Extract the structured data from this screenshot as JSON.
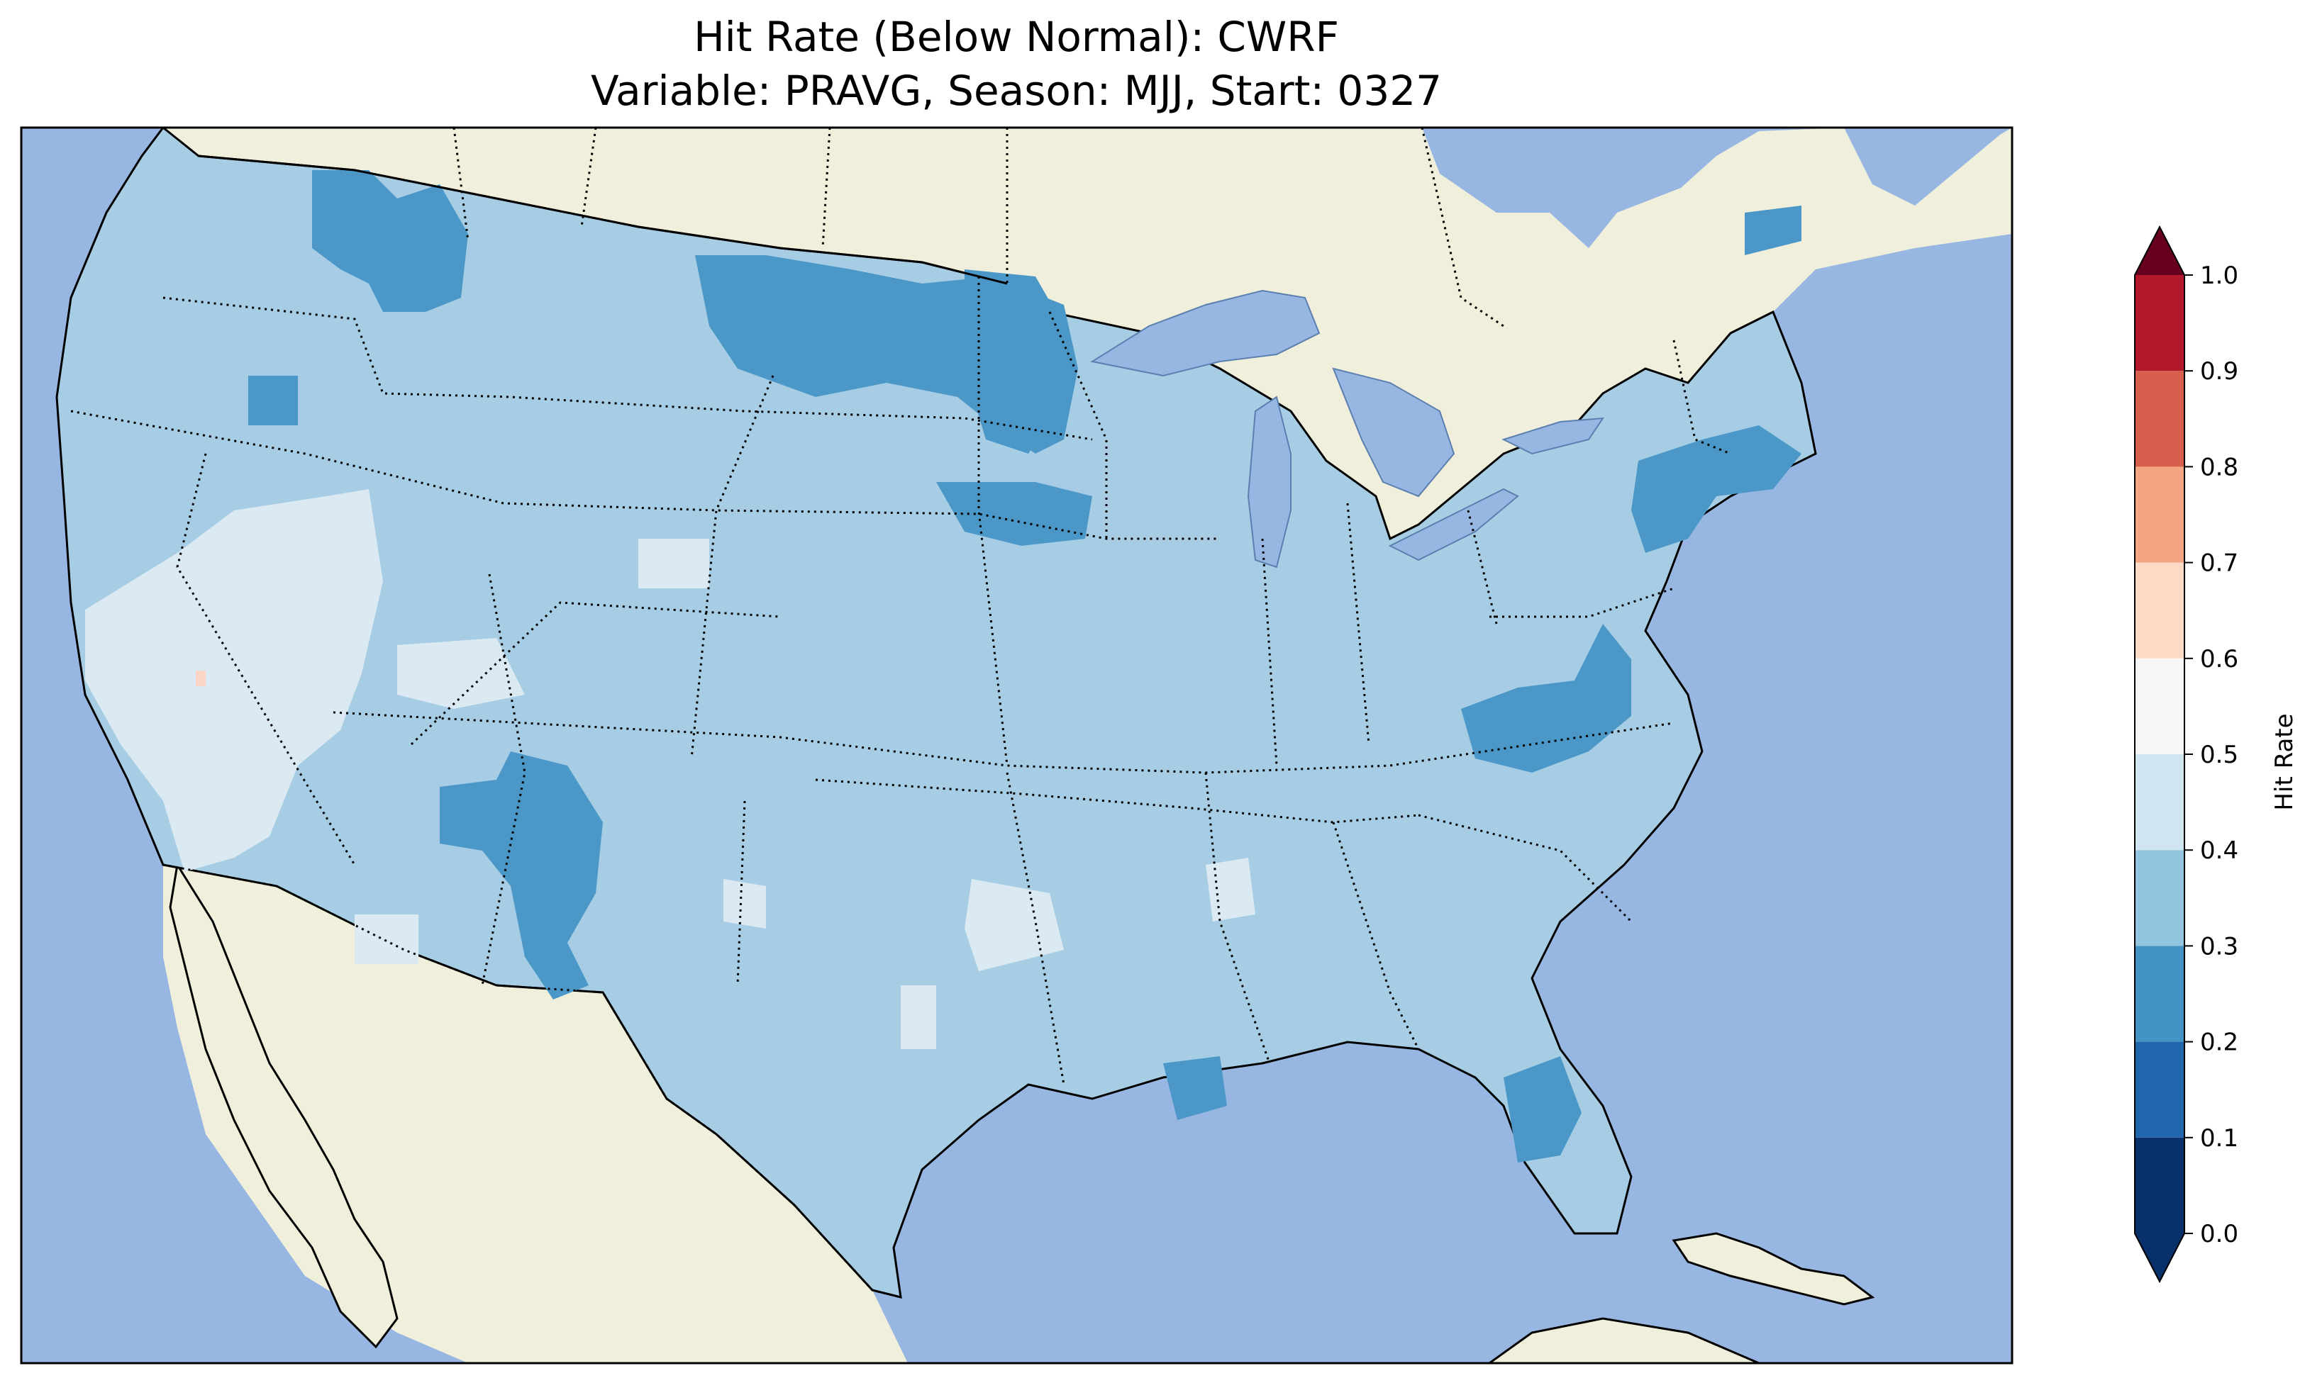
{
  "title": {
    "line1": "Hit Rate (Below Normal): CWRF",
    "line2": "Variable: PRAVG, Season: MJJ, Start: 0327"
  },
  "colorbar": {
    "label": "Hit Rate",
    "ticks": [
      "0.0",
      "0.1",
      "0.2",
      "0.3",
      "0.4",
      "0.5",
      "0.6",
      "0.7",
      "0.8",
      "0.9",
      "1.0"
    ],
    "bin_colors": [
      "#08306b",
      "#2166ac",
      "#4393c3",
      "#92c5de",
      "#d1e5f0",
      "#f7f7f7",
      "#fddbc7",
      "#f4a582",
      "#d6604d",
      "#b2182b",
      "#67001f"
    ],
    "extend": "both"
  },
  "map": {
    "ocean_color": "#97b6e1",
    "land_color": "#efefdb",
    "dominant_value_range": [
      0.3,
      0.4
    ]
  }
}
